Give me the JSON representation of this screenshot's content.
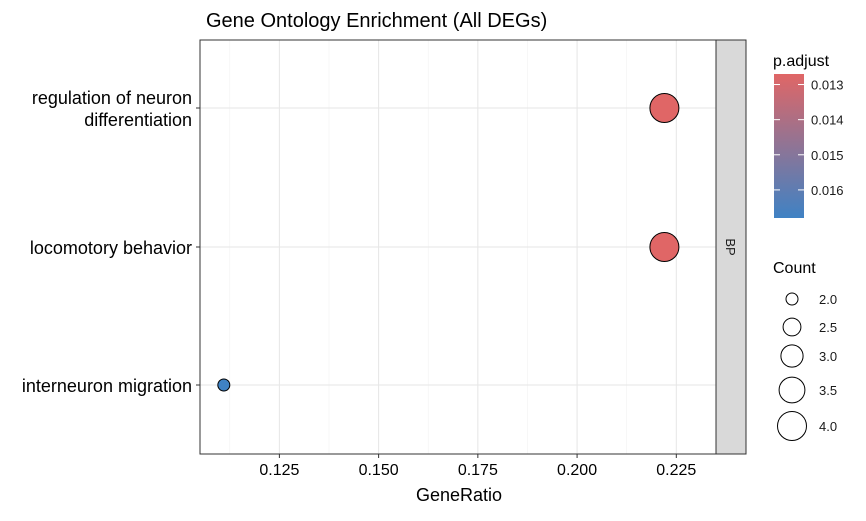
{
  "chart_data": {
    "type": "scatter",
    "title": "Gene Ontology Enrichment (All DEGs)",
    "xlabel": "GeneRatio",
    "ylabel": "",
    "xlim": [
      0.105,
      0.235
    ],
    "x_ticks": [
      0.125,
      0.15,
      0.175,
      0.2,
      0.225
    ],
    "x_tick_labels": [
      "0.125",
      "0.150",
      "0.175",
      "0.200",
      "0.225"
    ],
    "facet_label": "BP",
    "categories": [
      {
        "label_lines": [
          "regulation of neuron",
          "differentiation"
        ]
      },
      {
        "label_lines": [
          "locomotory behavior"
        ]
      },
      {
        "label_lines": [
          "interneuron migration"
        ]
      }
    ],
    "points": [
      {
        "term": "regulation of neuron differentiation",
        "gene_ratio": 0.222,
        "count": 4,
        "p_adjust": 0.0127
      },
      {
        "term": "locomotory behavior",
        "gene_ratio": 0.222,
        "count": 4,
        "p_adjust": 0.0127
      },
      {
        "term": "interneuron migration",
        "gene_ratio": 0.111,
        "count": 2,
        "p_adjust": 0.0168
      }
    ],
    "color_legend": {
      "title": "p.adjust",
      "range": [
        0.0127,
        0.0168
      ],
      "low_color": "#E06666",
      "high_color": "#3F82C4",
      "ticks": [
        0.013,
        0.014,
        0.015,
        0.016
      ],
      "tick_labels": [
        "0.013",
        "0.014",
        "0.015",
        "0.016"
      ]
    },
    "size_legend": {
      "title": "Count",
      "values": [
        2.0,
        2.5,
        3.0,
        3.5,
        4.0
      ],
      "labels": [
        "2.0",
        "2.5",
        "3.0",
        "3.5",
        "4.0"
      ]
    },
    "grid": true,
    "legend_position": "right"
  }
}
